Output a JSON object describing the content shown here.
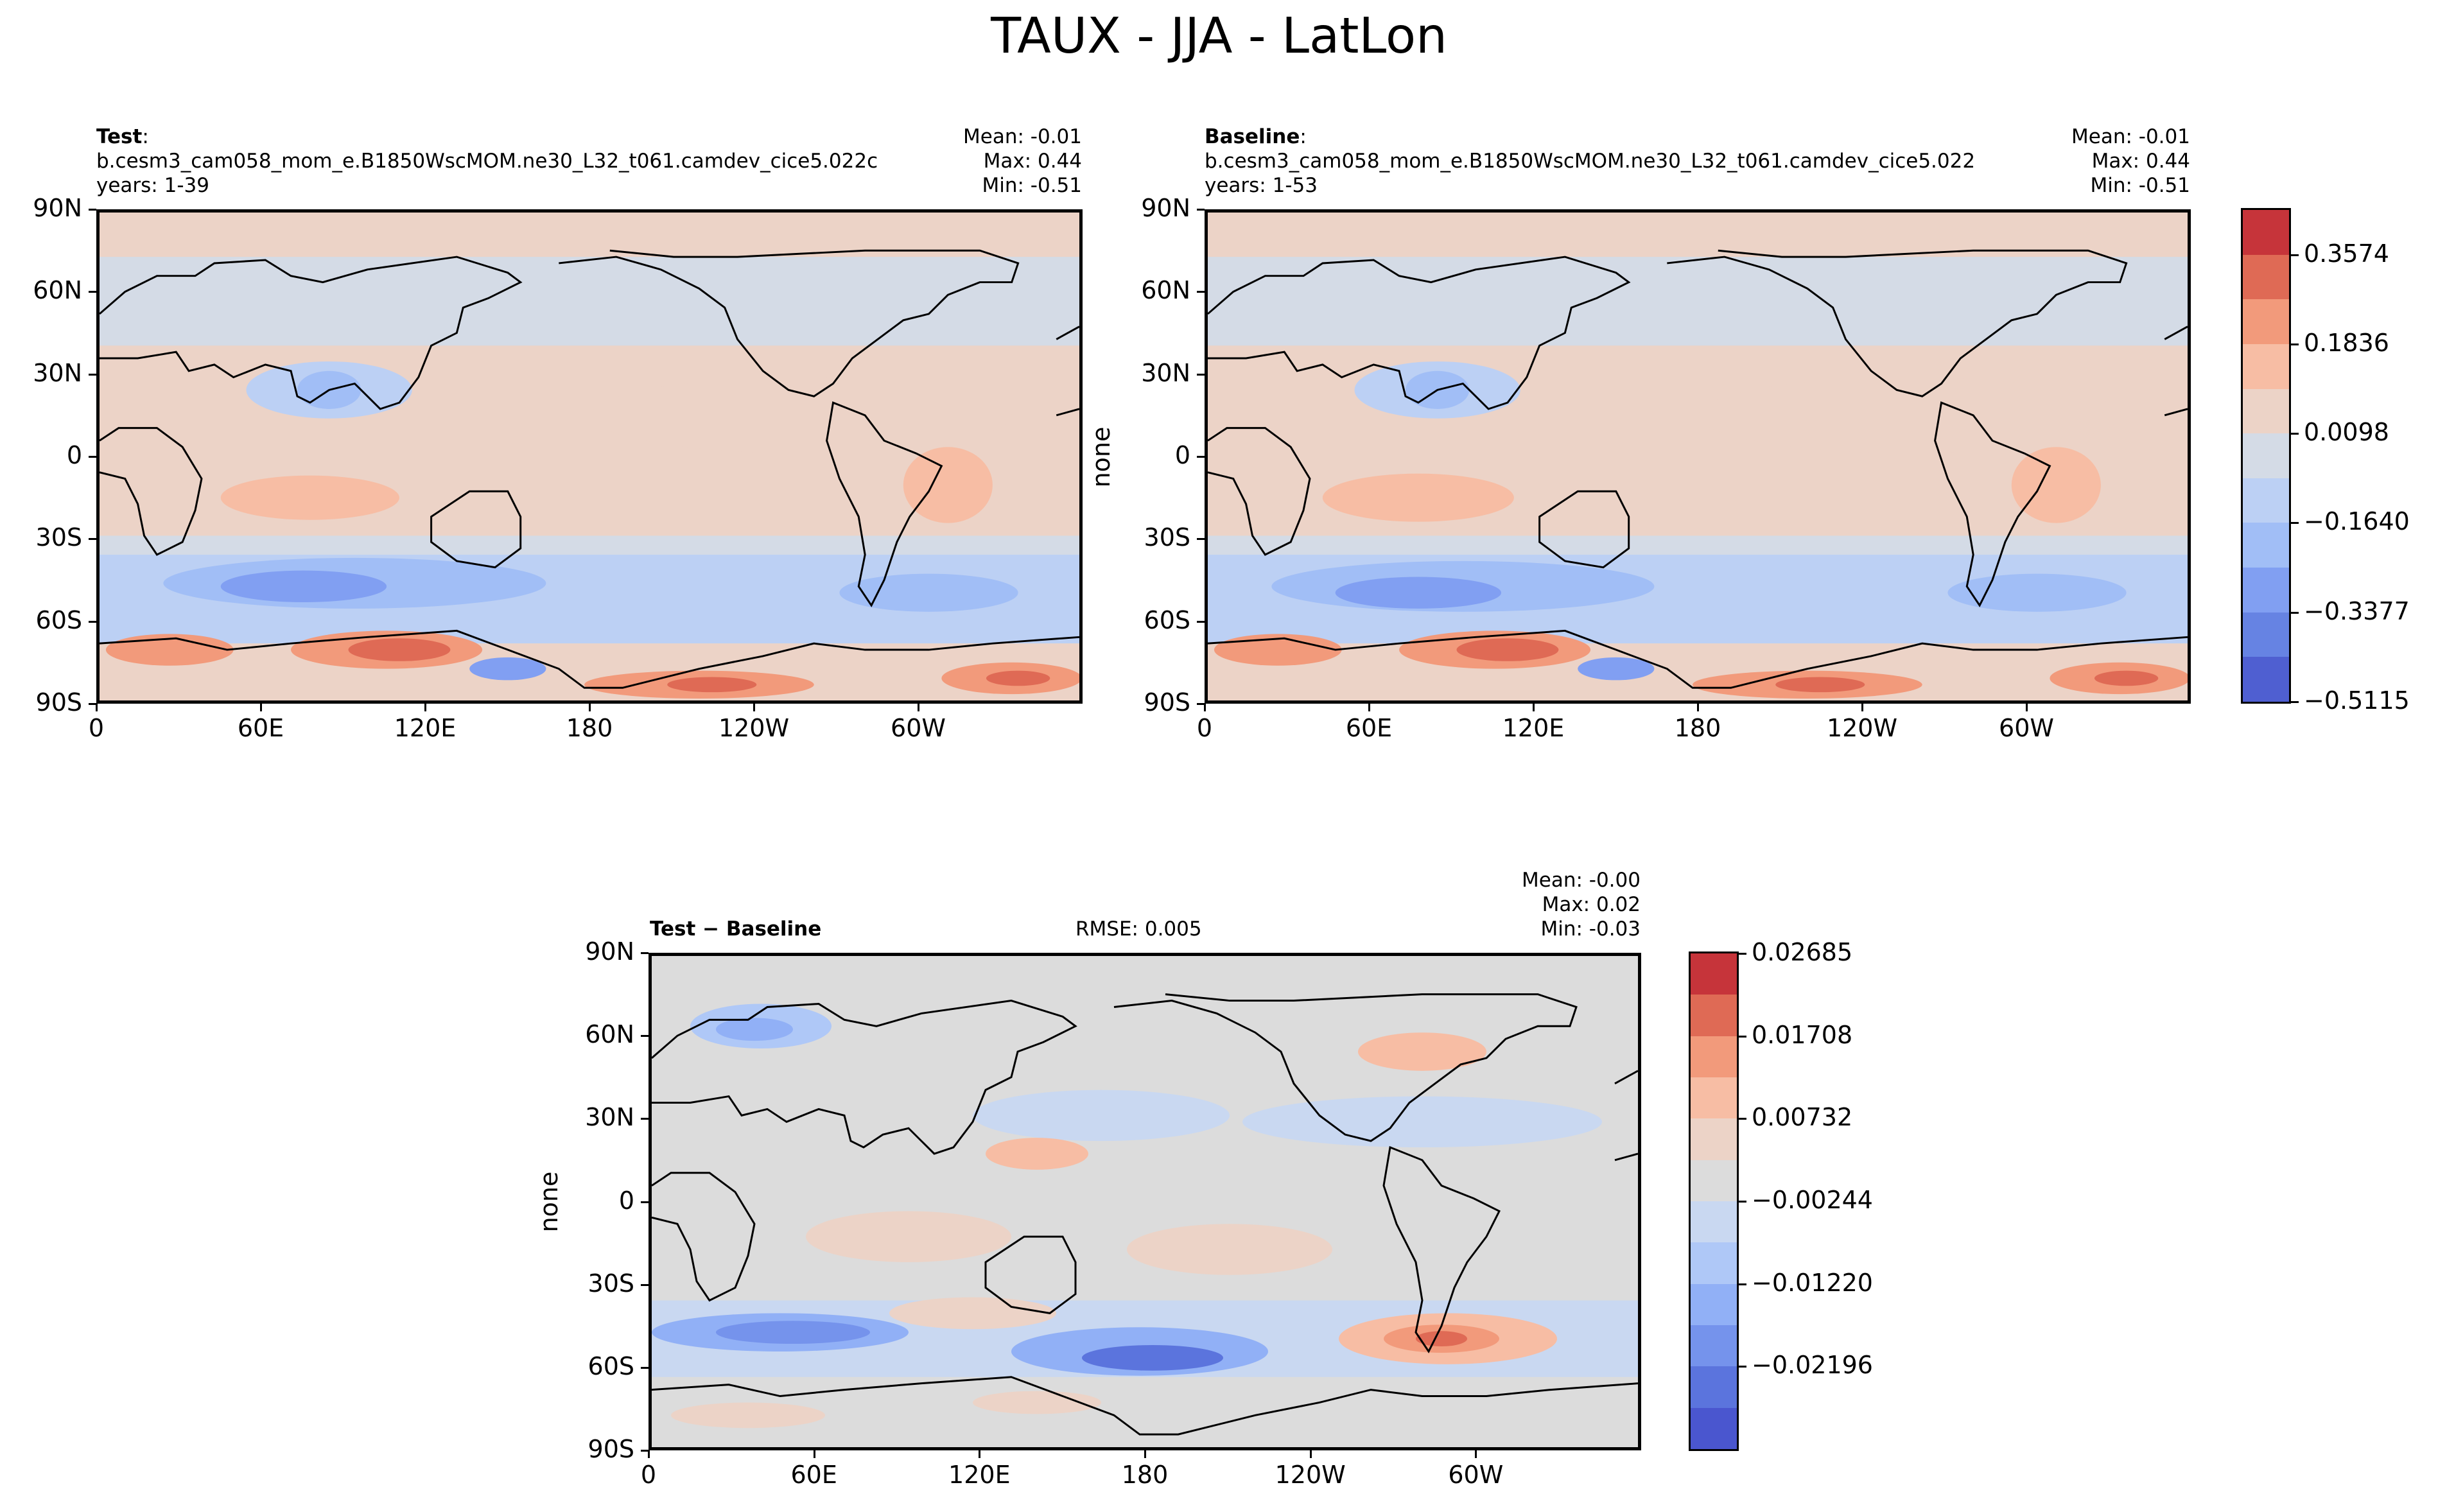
{
  "figure": {
    "title": "TAUX - JJA - LatLon"
  },
  "panels": [
    {
      "id": "test",
      "title_bold": "Test",
      "title_rest": ":",
      "case_name": "b.cesm3_cam058_mom_e.B1850WscMOM.ne30_L32_t061.camdev_cice5.022c",
      "years": "years: 1-39",
      "stats": {
        "mean": "Mean: -0.01",
        "max": "Max:  0.44",
        "min": "Min: -0.51"
      },
      "ylabel": ""
    },
    {
      "id": "baseline",
      "title_bold": "Baseline",
      "title_rest": ":",
      "case_name": "b.cesm3_cam058_mom_e.B1850WscMOM.ne30_L32_t061.camdev_cice5.022",
      "years": "years: 1-53",
      "stats": {
        "mean": "Mean: -0.01",
        "max": "Max:  0.44",
        "min": "Min: -0.51"
      },
      "ylabel": "none"
    },
    {
      "id": "diff",
      "title_bold": "Test",
      "title_op": " − ",
      "title_bold2": "Baseline",
      "rmse": "RMSE: 0.005",
      "stats": {
        "mean": "Mean: -0.00",
        "max": "Max:  0.02",
        "min": "Min: -0.03"
      },
      "ylabel": "none"
    }
  ],
  "axes": {
    "lat_ticks": [
      "90N",
      "60N",
      "30N",
      "0",
      "30S",
      "60S",
      "90S"
    ],
    "lon_ticks": [
      "0",
      "60E",
      "120E",
      "180",
      "120W",
      "60W"
    ]
  },
  "colorbars": {
    "main": {
      "labels": [
        "0.3574",
        "0.1836",
        "0.0098",
        "−0.1640",
        "−0.3377",
        "−0.5115"
      ],
      "colors": [
        "#c6343a",
        "#df6a55",
        "#f29a7b",
        "#f7bda4",
        "#ecd3c7",
        "#d4dbe6",
        "#bcd0f4",
        "#a1bef6",
        "#819ff2",
        "#6683e3",
        "#4f5fd1"
      ]
    },
    "diff": {
      "labels": [
        "0.02685",
        "0.01708",
        "0.00732",
        "−0.00244",
        "−0.01220",
        "−0.02196"
      ],
      "colors": [
        "#c6343a",
        "#df6a55",
        "#f29a7b",
        "#f7bda4",
        "#ecd3c7",
        "#dcdcdc",
        "#c9d8f1",
        "#afc8f7",
        "#91b0f6",
        "#7593ec",
        "#5b74dd",
        "#4a56cf"
      ]
    }
  }
}
